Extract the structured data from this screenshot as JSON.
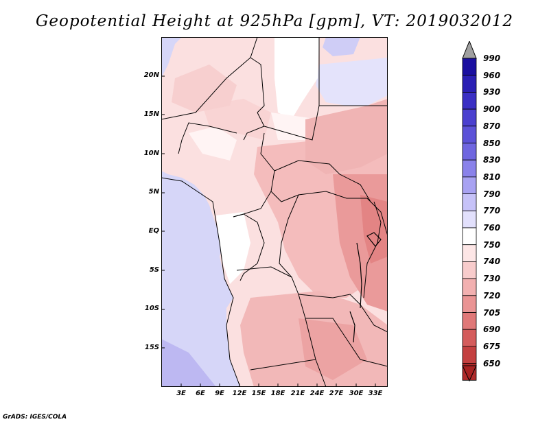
{
  "title": "Geopotential Height at 925hPa [gpm], VT: 2019032012",
  "footer": "GrADS: IGES/COLA",
  "latitude_labels": [
    "20N",
    "15N",
    "10N",
    "5N",
    "EQ",
    "5S",
    "10S",
    "15S"
  ],
  "longitude_labels": [
    "3E",
    "6E",
    "9E",
    "12E",
    "15E",
    "18E",
    "21E",
    "24E",
    "27E",
    "30E",
    "33E"
  ],
  "colorbar": {
    "levels": [
      "990",
      "960",
      "930",
      "900",
      "870",
      "850",
      "830",
      "810",
      "790",
      "770",
      "760",
      "750",
      "740",
      "730",
      "720",
      "705",
      "690",
      "675",
      "650"
    ],
    "colors": [
      "#1a0fa0",
      "#2a1fb4",
      "#3a2fc4",
      "#4b40cf",
      "#5c52d8",
      "#6f66e0",
      "#8a82ea",
      "#a8a2f2",
      "#c6c2f8",
      "#e2e0fc",
      "#ffffff",
      "#fde6e6",
      "#f8cccc",
      "#f2b0b0",
      "#ea9494",
      "#e07878",
      "#d45c5c",
      "#c44040",
      "#b02a2a"
    ],
    "arrow_top_color": "#a0a0a0",
    "arrow_bottom_color": "#a82020"
  },
  "map": {
    "ocean_color": "#d6d6f8",
    "land_color": "#fbe0e0"
  }
}
